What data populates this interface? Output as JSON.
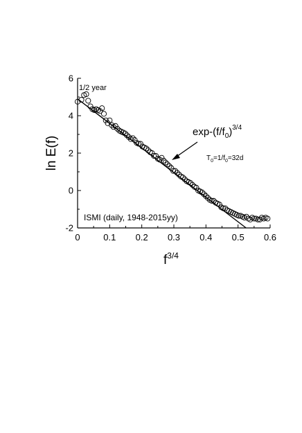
{
  "chart_data": {
    "type": "scatter",
    "title": "",
    "xlabel": "f",
    "xlabel_sup": "3/4",
    "ylabel": "ln E(f)",
    "xlim": [
      0,
      0.6
    ],
    "ylim": [
      -2,
      6
    ],
    "x_ticks": [
      "0",
      "0.1",
      "0.2",
      "0.3",
      "0.4",
      "0.5",
      "0.6"
    ],
    "y_ticks": [
      "-2",
      "0",
      "2",
      "4",
      "6"
    ],
    "grid": false,
    "annotations": {
      "half_year": "1/2 year",
      "fit_formula_main": "exp-(f/f",
      "fit_formula_sub": "0",
      "fit_formula_close": ")",
      "fit_formula_sup": "3/4",
      "period_T": "T",
      "period_T_sub": "0",
      "period_eq": "=1/f",
      "period_f_sub": "0",
      "period_value": "=32d",
      "dataset": "ISMI (daily, 1948-2015yy)"
    },
    "series": [
      {
        "marker": "open-circle",
        "x": [
          0.0,
          0.012,
          0.02,
          0.027,
          0.033,
          0.04,
          0.046,
          0.052,
          0.058,
          0.064,
          0.07,
          0.076,
          0.082,
          0.088,
          0.094,
          0.1,
          0.106,
          0.112,
          0.118,
          0.124,
          0.13,
          0.136,
          0.142,
          0.148,
          0.154,
          0.16,
          0.166,
          0.172,
          0.178,
          0.184,
          0.19,
          0.196,
          0.202,
          0.208,
          0.214,
          0.22,
          0.226,
          0.232,
          0.238,
          0.244,
          0.25,
          0.256,
          0.262,
          0.268,
          0.274,
          0.28,
          0.286,
          0.292,
          0.298,
          0.304,
          0.31,
          0.316,
          0.322,
          0.328,
          0.334,
          0.34,
          0.346,
          0.352,
          0.358,
          0.364,
          0.37,
          0.376,
          0.382,
          0.388,
          0.394,
          0.4,
          0.406,
          0.412,
          0.418,
          0.424,
          0.43,
          0.436,
          0.442,
          0.448,
          0.454,
          0.46,
          0.466,
          0.472,
          0.478,
          0.484,
          0.49,
          0.496,
          0.502,
          0.508,
          0.514,
          0.52,
          0.526,
          0.532,
          0.538,
          0.544,
          0.55,
          0.556,
          0.562,
          0.568,
          0.574,
          0.58,
          0.586,
          0.592
        ],
        "y": [
          4.75,
          4.85,
          5.1,
          5.15,
          4.8,
          4.5,
          4.35,
          4.3,
          4.35,
          4.3,
          4.25,
          4.4,
          4.1,
          3.75,
          3.6,
          3.75,
          3.5,
          3.4,
          3.45,
          3.3,
          3.2,
          3.15,
          3.1,
          3.05,
          2.95,
          2.85,
          2.75,
          2.8,
          2.7,
          2.55,
          2.5,
          2.5,
          2.35,
          2.3,
          2.25,
          2.15,
          2.05,
          2.0,
          1.85,
          1.85,
          1.7,
          1.65,
          1.75,
          1.6,
          1.5,
          1.4,
          1.3,
          1.2,
          1.05,
          1.05,
          0.95,
          0.85,
          0.75,
          0.7,
          0.6,
          0.5,
          0.45,
          0.4,
          0.3,
          0.2,
          0.15,
          0.0,
          -0.05,
          -0.1,
          -0.2,
          -0.3,
          -0.4,
          -0.5,
          -0.55,
          -0.55,
          -0.65,
          -0.7,
          -0.75,
          -0.9,
          -0.95,
          -0.95,
          -1.05,
          -1.1,
          -1.15,
          -1.2,
          -1.25,
          -1.3,
          -1.35,
          -1.35,
          -1.4,
          -1.45,
          -1.4,
          -1.5,
          -1.55,
          -1.45,
          -1.5,
          -1.5,
          -1.55,
          -1.55,
          -1.45,
          -1.5,
          -1.45,
          -1.5
        ]
      },
      {
        "marker": "line",
        "x": [
          0.0,
          0.525
        ],
        "y": [
          4.9,
          -2.0
        ]
      }
    ]
  }
}
